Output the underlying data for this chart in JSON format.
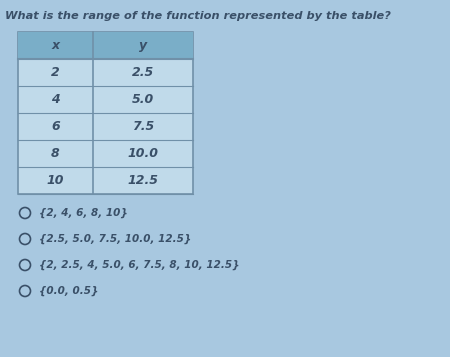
{
  "title": "What is the range of the function represented by the table?",
  "table_headers": [
    "x",
    "y"
  ],
  "table_data": [
    [
      "2",
      "2.5"
    ],
    [
      "4",
      "5.0"
    ],
    [
      "6",
      "7.5"
    ],
    [
      "8",
      "10.0"
    ],
    [
      "10",
      "12.5"
    ]
  ],
  "options": [
    "{2, 4, 6, 8, 10}",
    "{2.5, 5.0, 7.5, 10.0, 12.5}",
    "{2, 2.5, 4, 5.0, 6, 7.5, 8, 10, 12.5}",
    "{0.0, 0.5}"
  ],
  "fig_bg": "#a8c8e0",
  "table_header_bg": "#7aaec8",
  "table_row_bg": "#c0daea",
  "table_border": "#7090a8",
  "title_color": "#3a5068",
  "table_text_color": "#3a5068",
  "option_text_color": "#3a5068",
  "circle_color": "#3a5068"
}
